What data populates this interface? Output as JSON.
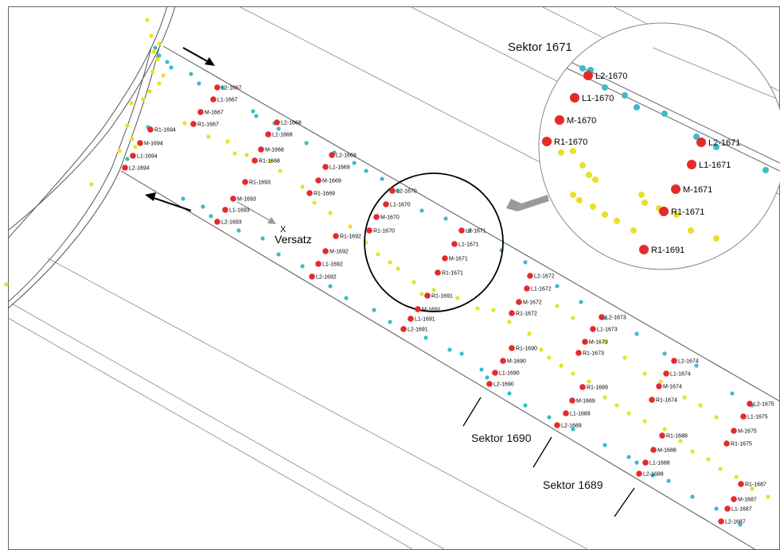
{
  "colors": {
    "survey_point": "#e32b2b",
    "cyan_points": "#3cbccb",
    "yellow_points": "#e8e12a"
  },
  "sector_labels": {
    "inset": "Sektor 1671",
    "s1690": "Sektor 1690",
    "s1689": "Sektor 1689"
  },
  "versatz": {
    "mark": "X",
    "label": "Versatz"
  },
  "icons": {
    "direction_arrows": "arrow-icon",
    "pointer": "pointer-arrow-icon"
  },
  "points": [
    "L2-1667",
    "L1-1667",
    "M-1667",
    "R1-1667",
    "L2-1668",
    "L1-1668",
    "M-1668",
    "R1-1668",
    "L2-1669",
    "L1-1669",
    "M-1669",
    "R1-1669",
    "R1-1694",
    "M-1694",
    "L1-1694",
    "L2-1694",
    "R1-1693",
    "M-1693",
    "L1-1693",
    "L2-1693",
    "R1-1692",
    "M-1692",
    "L1-1692",
    "L2-1692",
    "L2-1670",
    "L1-1670",
    "M-1670",
    "R1-1670",
    "L2-1671",
    "L1-1671",
    "M-1671",
    "R1-1671",
    "R1-1691",
    "M-1691",
    "L1-1691",
    "L2-1691",
    "L2-1672",
    "L1-1672",
    "M-1672",
    "R1-1672",
    "L2-1673",
    "L1-1673",
    "M-1673",
    "R1-1673",
    "L2-1674",
    "L1-1674",
    "M-1674",
    "R1-1674",
    "L2-1675",
    "L1-1675",
    "M-1675",
    "R1-1675",
    "R1-1690",
    "M-1690",
    "L1-1690",
    "L2-1690",
    "R1-1689",
    "M-1689",
    "L1-1689",
    "L2-1689",
    "R1-1688",
    "M-1688",
    "L1-1688",
    "L2-1688",
    "R1-1687",
    "M-1687",
    "L1-1687",
    "L2-1687"
  ],
  "inset_points": [
    "L2-1670",
    "L1-1670",
    "M-1670",
    "R1-1670",
    "L2-1671",
    "L1-1671",
    "M-1671",
    "R1-1671",
    "R1-1691"
  ]
}
